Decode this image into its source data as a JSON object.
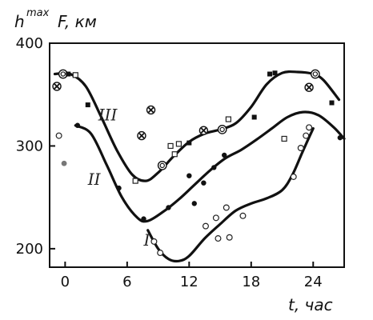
{
  "chart_data": {
    "type": "scatter",
    "ylabel": "h",
    "ylabel_superscript": "max",
    "ylabel_suffix": "F, км",
    "xlabel": "t, час",
    "xlim": [
      -1.5,
      27
    ],
    "ylim": [
      182,
      400
    ],
    "x_ticks": [
      0,
      6,
      12,
      18,
      24
    ],
    "y_ticks": [
      200,
      300,
      400
    ],
    "grid": false,
    "series": [
      {
        "name": "III",
        "curve": [
          [
            -1,
            370
          ],
          [
            0.5,
            370
          ],
          [
            2,
            358
          ],
          [
            3.5,
            328
          ],
          [
            5,
            296
          ],
          [
            6.5,
            272
          ],
          [
            7.8,
            266
          ],
          [
            9,
            274
          ],
          [
            10.5,
            290
          ],
          [
            12,
            304
          ],
          [
            13.5,
            312
          ],
          [
            15,
            316
          ],
          [
            16.5,
            322
          ],
          [
            18,
            338
          ],
          [
            19.5,
            360
          ],
          [
            21,
            371
          ],
          [
            22.5,
            372
          ],
          [
            24,
            370
          ],
          [
            25,
            364
          ],
          [
            26.5,
            345
          ]
        ],
        "points": [
          {
            "x": -0.8,
            "y": 358,
            "marker": "circled-x"
          },
          {
            "x": -0.2,
            "y": 370,
            "marker": "circled-dot"
          },
          {
            "x": 0.3,
            "y": 370,
            "marker": "square-filled"
          },
          {
            "x": 1.0,
            "y": 369,
            "marker": "square-open"
          },
          {
            "x": 2.2,
            "y": 340,
            "marker": "square-filled"
          },
          {
            "x": 6.8,
            "y": 266,
            "marker": "square-open"
          },
          {
            "x": 7.4,
            "y": 310,
            "marker": "circled-x"
          },
          {
            "x": 8.3,
            "y": 335,
            "marker": "circled-x"
          },
          {
            "x": 9.4,
            "y": 281,
            "marker": "circled-dot"
          },
          {
            "x": 10.2,
            "y": 300,
            "marker": "square-open"
          },
          {
            "x": 10.6,
            "y": 292,
            "marker": "square-open"
          },
          {
            "x": 11.0,
            "y": 302,
            "marker": "square-open"
          },
          {
            "x": 12.0,
            "y": 303,
            "marker": "square-filled"
          },
          {
            "x": 13.4,
            "y": 315,
            "marker": "circled-x"
          },
          {
            "x": 15.2,
            "y": 316,
            "marker": "circled-dot"
          },
          {
            "x": 15.8,
            "y": 326,
            "marker": "square-open"
          },
          {
            "x": 18.3,
            "y": 328,
            "marker": "square-filled"
          },
          {
            "x": 19.8,
            "y": 370,
            "marker": "square-filled"
          },
          {
            "x": 20.3,
            "y": 371,
            "marker": "square-filled"
          },
          {
            "x": 23.6,
            "y": 357,
            "marker": "circled-x"
          },
          {
            "x": 24.2,
            "y": 370,
            "marker": "circled-dot"
          },
          {
            "x": 25.8,
            "y": 342,
            "marker": "square-filled"
          }
        ]
      },
      {
        "name": "II",
        "curve": [
          [
            1,
            320
          ],
          [
            2.5,
            312
          ],
          [
            4,
            282
          ],
          [
            5.5,
            250
          ],
          [
            7,
            230
          ],
          [
            8,
            227
          ],
          [
            9.5,
            236
          ],
          [
            11,
            248
          ],
          [
            12.5,
            262
          ],
          [
            14,
            276
          ],
          [
            15.5,
            288
          ],
          [
            17,
            296
          ],
          [
            18.5,
            306
          ],
          [
            20,
            317
          ],
          [
            21.5,
            328
          ],
          [
            23,
            333
          ],
          [
            24.5,
            330
          ],
          [
            26,
            318
          ],
          [
            27,
            307
          ]
        ],
        "points": [
          {
            "x": -0.6,
            "y": 310,
            "marker": "circle-open"
          },
          {
            "x": -0.1,
            "y": 283,
            "marker": "circle-gray"
          },
          {
            "x": 1.2,
            "y": 320,
            "marker": "circle-filled"
          },
          {
            "x": 5.2,
            "y": 259,
            "marker": "circle-filled"
          },
          {
            "x": 7.6,
            "y": 229,
            "marker": "circle-filled"
          },
          {
            "x": 10.0,
            "y": 240,
            "marker": "circle-filled"
          },
          {
            "x": 12.0,
            "y": 271,
            "marker": "circle-filled"
          },
          {
            "x": 12.5,
            "y": 244,
            "marker": "circle-filled"
          },
          {
            "x": 13.4,
            "y": 264,
            "marker": "circle-filled"
          },
          {
            "x": 14.4,
            "y": 279,
            "marker": "circle-filled"
          },
          {
            "x": 15.4,
            "y": 291,
            "marker": "circle-filled"
          },
          {
            "x": 21.2,
            "y": 307,
            "marker": "square-open"
          },
          {
            "x": 26.6,
            "y": 308,
            "marker": "circle-filled"
          }
        ]
      },
      {
        "name": "I",
        "curve": [
          [
            8,
            218
          ],
          [
            9,
            200
          ],
          [
            10,
            190
          ],
          [
            11,
            188
          ],
          [
            12,
            193
          ],
          [
            13.5,
            210
          ],
          [
            15,
            224
          ],
          [
            16.5,
            237
          ],
          [
            18,
            244
          ],
          [
            19.5,
            249
          ],
          [
            21,
            257
          ],
          [
            22,
            272
          ],
          [
            23,
            295
          ],
          [
            24,
            317
          ]
        ],
        "points": [
          {
            "x": 8.6,
            "y": 207,
            "marker": "circle-open"
          },
          {
            "x": 9.2,
            "y": 196,
            "marker": "circle-open"
          },
          {
            "x": 13.6,
            "y": 222,
            "marker": "circle-open"
          },
          {
            "x": 14.6,
            "y": 230,
            "marker": "circle-open"
          },
          {
            "x": 14.8,
            "y": 210,
            "marker": "circle-open"
          },
          {
            "x": 15.6,
            "y": 240,
            "marker": "circle-open"
          },
          {
            "x": 15.9,
            "y": 211,
            "marker": "circle-open"
          },
          {
            "x": 17.2,
            "y": 232,
            "marker": "circle-open"
          },
          {
            "x": 22.1,
            "y": 270,
            "marker": "circle-open"
          },
          {
            "x": 22.8,
            "y": 298,
            "marker": "circle-open"
          },
          {
            "x": 23.3,
            "y": 310,
            "marker": "circle-open"
          },
          {
            "x": 23.6,
            "y": 318,
            "marker": "circle-open"
          }
        ]
      }
    ]
  }
}
